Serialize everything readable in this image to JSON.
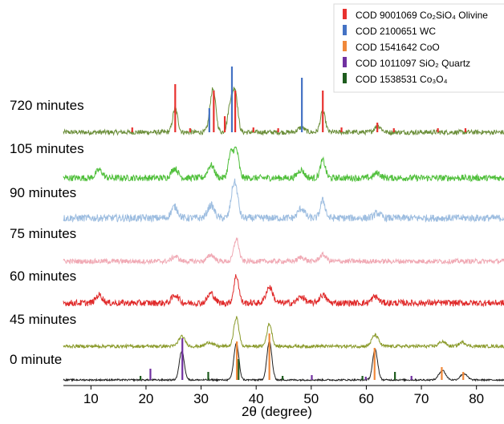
{
  "chart_data": {
    "type": "line",
    "xlabel": "2θ (degree)",
    "xlim": [
      5,
      85
    ],
    "x_ticks": [
      10,
      20,
      30,
      40,
      50,
      60,
      70,
      80
    ],
    "grid": false,
    "legend_position": "top-right",
    "legend": [
      {
        "name": "COD 9001069 Co₂SiO₄ Olivine",
        "color": "#e8312f"
      },
      {
        "name": "COD 2100651 WC",
        "color": "#4472c4"
      },
      {
        "name": "COD 1541642 CoO",
        "color": "#f0883a"
      },
      {
        "name": "COD 1011097 SiO₂ Quartz",
        "color": "#7030a0"
      },
      {
        "name": "COD 1538531 Co₃O₄",
        "color": "#1e5c1e"
      }
    ],
    "series": [
      {
        "name": "720 minutes",
        "color": "#6b8e3a",
        "noise": 3.0,
        "peaks": [
          [
            25.3,
            30
          ],
          [
            31.8,
            22
          ],
          [
            32.3,
            40
          ],
          [
            35.3,
            34
          ],
          [
            36.2,
            50
          ],
          [
            48.2,
            6
          ],
          [
            52.1,
            26
          ],
          [
            62.1,
            8
          ]
        ]
      },
      {
        "name": "105 minutes",
        "color": "#4fbf3a",
        "noise": 4.0,
        "peaks": [
          [
            11.5,
            10
          ],
          [
            25.2,
            12
          ],
          [
            31.8,
            16
          ],
          [
            35.4,
            30
          ],
          [
            36.4,
            34
          ],
          [
            48.1,
            10
          ],
          [
            52.1,
            22
          ],
          [
            62.0,
            6
          ]
        ]
      },
      {
        "name": "90 minutes",
        "color": "#9dbde0",
        "noise": 4.5,
        "peaks": [
          [
            25.2,
            14
          ],
          [
            31.8,
            16
          ],
          [
            35.8,
            30
          ],
          [
            36.4,
            26
          ],
          [
            48.2,
            12
          ],
          [
            52.1,
            22
          ],
          [
            62.0,
            6
          ]
        ]
      },
      {
        "name": "75 minutes",
        "color": "#f0a9b4",
        "noise": 3.0,
        "peaks": [
          [
            25.3,
            6
          ],
          [
            31.8,
            8
          ],
          [
            36.4,
            28
          ],
          [
            48.2,
            5
          ],
          [
            52.1,
            8
          ]
        ]
      },
      {
        "name": "60 minutes",
        "color": "#e02a2a",
        "noise": 4.0,
        "peaks": [
          [
            11.5,
            10
          ],
          [
            25.3,
            10
          ],
          [
            31.8,
            12
          ],
          [
            36.4,
            34
          ],
          [
            42.4,
            20
          ],
          [
            48.2,
            8
          ],
          [
            52.1,
            10
          ],
          [
            61.6,
            8
          ]
        ]
      },
      {
        "name": "45 minutes",
        "color": "#8a9a2a",
        "noise": 2.0,
        "peaks": [
          [
            26.5,
            12
          ],
          [
            31.5,
            5
          ],
          [
            36.4,
            36
          ],
          [
            42.4,
            28
          ],
          [
            61.6,
            14
          ],
          [
            73.8,
            6
          ],
          [
            77.5,
            5
          ]
        ]
      },
      {
        "name": "0 minute",
        "color": "#202020",
        "noise": 1.0,
        "peaks": [
          [
            26.5,
            36
          ],
          [
            36.4,
            46
          ],
          [
            42.4,
            48
          ],
          [
            61.6,
            38
          ],
          [
            73.8,
            12
          ],
          [
            77.7,
            8
          ]
        ]
      }
    ],
    "reference_sticks": [
      {
        "phase": "COD 9001069 Co₂SiO₄ Olivine",
        "color": "#e8312f",
        "on_series": "720 minutes",
        "positions": [
          [
            25.3,
            60
          ],
          [
            32.3,
            52
          ],
          [
            34.3,
            20
          ],
          [
            36.2,
            52
          ],
          [
            52.1,
            52
          ],
          [
            62.0,
            12
          ],
          [
            17.5,
            6
          ],
          [
            28.0,
            5
          ],
          [
            39.5,
            6
          ],
          [
            44.0,
            5
          ],
          [
            55.5,
            6
          ],
          [
            65.0,
            5
          ],
          [
            73.0,
            5
          ],
          [
            78.0,
            5
          ]
        ]
      },
      {
        "phase": "COD 2100651 WC",
        "color": "#4472c4",
        "on_series": "720 minutes",
        "positions": [
          [
            31.5,
            30
          ],
          [
            35.6,
            82
          ],
          [
            48.3,
            68
          ]
        ]
      },
      {
        "phase": "COD 1011097 SiO₂ Quartz",
        "color": "#7030a0",
        "on_series": "0 minute",
        "positions": [
          [
            20.8,
            14
          ],
          [
            26.6,
            52
          ],
          [
            50.1,
            6
          ],
          [
            59.9,
            4
          ],
          [
            68.2,
            5
          ]
        ]
      },
      {
        "phase": "COD 1538531 Co₃O₄",
        "color": "#1e5c1e",
        "on_series": "0 minute",
        "positions": [
          [
            19.0,
            5
          ],
          [
            31.3,
            10
          ],
          [
            36.8,
            26
          ],
          [
            44.8,
            5
          ],
          [
            59.3,
            5
          ],
          [
            65.2,
            10
          ]
        ]
      },
      {
        "phase": "COD 1541642 CoO",
        "color": "#f0883a",
        "on_series": "0 minute",
        "positions": [
          [
            36.5,
            48
          ],
          [
            42.4,
            58
          ],
          [
            61.5,
            40
          ],
          [
            73.7,
            16
          ],
          [
            77.6,
            10
          ]
        ]
      }
    ]
  }
}
